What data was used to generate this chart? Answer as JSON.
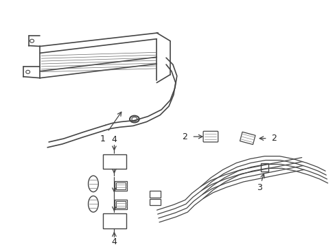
{
  "background_color": "#ffffff",
  "line_color": "#444444",
  "text_color": "#222222",
  "fig_width": 4.89,
  "fig_height": 3.6,
  "dpi": 100
}
